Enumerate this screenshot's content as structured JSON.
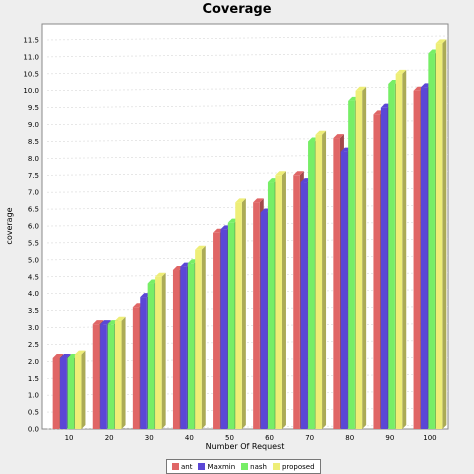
{
  "chart_data": {
    "type": "bar",
    "title": "Coverage",
    "xlabel": "Number Of Request",
    "ylabel": "coverage",
    "ylim": [
      0.0,
      11.5
    ],
    "ytick_step": 0.5,
    "grid": true,
    "legend": "bottom",
    "categories": [
      "10",
      "20",
      "30",
      "40",
      "50",
      "60",
      "70",
      "80",
      "90",
      "100"
    ],
    "series": [
      {
        "name": "ant",
        "color": "#e06666",
        "values": [
          2.1,
          3.1,
          3.6,
          4.7,
          5.8,
          6.7,
          7.5,
          8.6,
          9.3,
          10.0
        ]
      },
      {
        "name": "Maxmin",
        "color": "#5b47d6",
        "values": [
          2.1,
          3.1,
          3.9,
          4.8,
          5.9,
          6.4,
          7.3,
          8.2,
          9.5,
          10.1
        ]
      },
      {
        "name": "nash",
        "color": "#77ee66",
        "values": [
          2.1,
          3.1,
          4.3,
          4.9,
          6.1,
          7.3,
          8.5,
          9.7,
          10.2,
          11.1
        ]
      },
      {
        "name": "proposed",
        "color": "#eeee77",
        "values": [
          2.2,
          3.2,
          4.5,
          5.3,
          6.7,
          7.5,
          8.7,
          10.0,
          10.5,
          11.4
        ]
      }
    ]
  }
}
